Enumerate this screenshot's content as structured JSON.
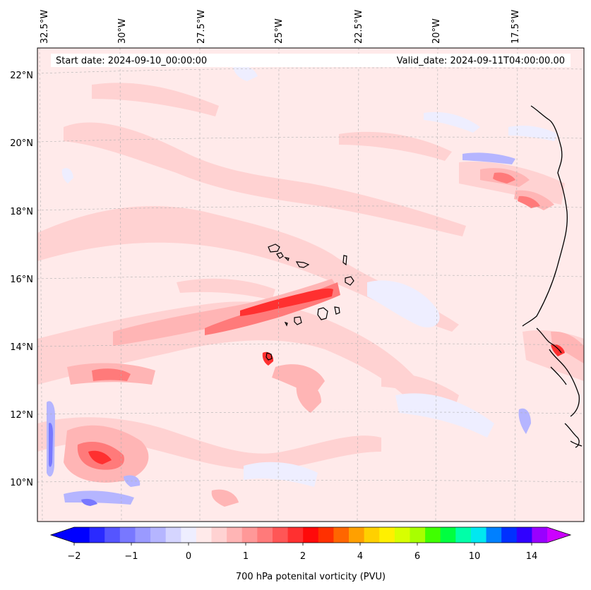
{
  "map": {
    "header": {
      "start_date": "Start date: 2024-09-10_00:00:00",
      "valid_date": "Valid_date: 2024-09-11T04:00:00.00"
    },
    "longitude_labels": [
      "32.5°W",
      "30°W",
      "27.5°W",
      "25°W",
      "22.5°W",
      "20°W",
      "17.5°W"
    ],
    "latitude_labels": [
      "22°N",
      "20°N",
      "18°N",
      "16°N",
      "14°N",
      "12°N",
      "10°N"
    ],
    "colorbar": {
      "label": "700 hPa potenital vorticity (PVU)",
      "ticks": [
        "−2",
        "−1",
        "0",
        "1",
        "2",
        "4",
        "6",
        "10",
        "14"
      ],
      "colors": [
        "#0000ff",
        "#2a2aff",
        "#5555ff",
        "#7878ff",
        "#9a9aff",
        "#b5b5ff",
        "#d5d5ff",
        "#eeeeff",
        "#ffeaea",
        "#ffd2d2",
        "#ffb5b5",
        "#ff9898",
        "#ff7a7a",
        "#ff5656",
        "#ff3030",
        "#ff0a0a",
        "#ff3000",
        "#ff6600",
        "#ffa000",
        "#ffd000",
        "#fff000",
        "#d8ff00",
        "#a8ff00",
        "#40ff00",
        "#00ff40",
        "#00ffa8",
        "#00e8f0",
        "#0080ff",
        "#0030ff",
        "#3000ff",
        "#9900ff"
      ],
      "under_color": "#0000ff",
      "over_color": "#cc00ff"
    }
  }
}
